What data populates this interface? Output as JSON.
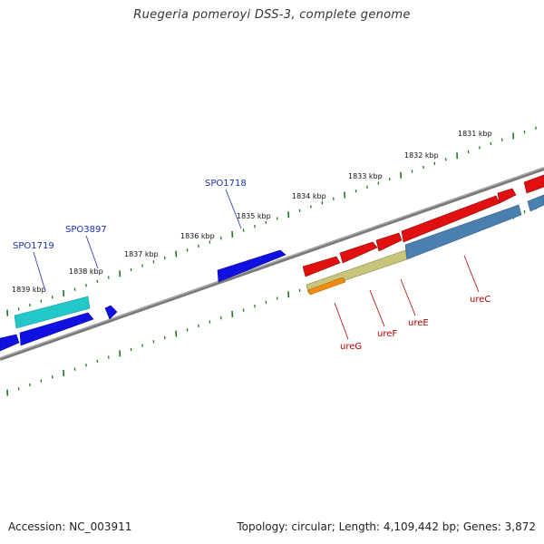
{
  "title": "Ruegeria pomeroyi DSS-3, complete genome",
  "footer": {
    "accession": "Accession: NC_003911",
    "summary": "Topology: circular; Length: 4,109,442 bp; Genes: 3,872"
  },
  "ruler": {
    "labels": [
      "1831 kbp",
      "1832 kbp",
      "1833 kbp",
      "1834 kbp",
      "1835 kbp",
      "1836 kbp",
      "1837 kbp",
      "1838 kbp",
      "1839 kbp"
    ],
    "tick_color": "#1f7a1f"
  },
  "genes": {
    "blue_labels": [
      "SPO1718",
      "SPO3897",
      "SPO1719"
    ],
    "red_labels": [
      "ureC",
      "ureE",
      "ureF",
      "ureG"
    ]
  },
  "colors": {
    "backbone": "#808080",
    "forward_gene": "#1010e0",
    "cyan_gene": "#22c8c8",
    "red_gene": "#e01010",
    "steel_gene": "#4a7fb0",
    "olive_gene": "#c8c47a",
    "orange_gene": "#f08c10"
  }
}
